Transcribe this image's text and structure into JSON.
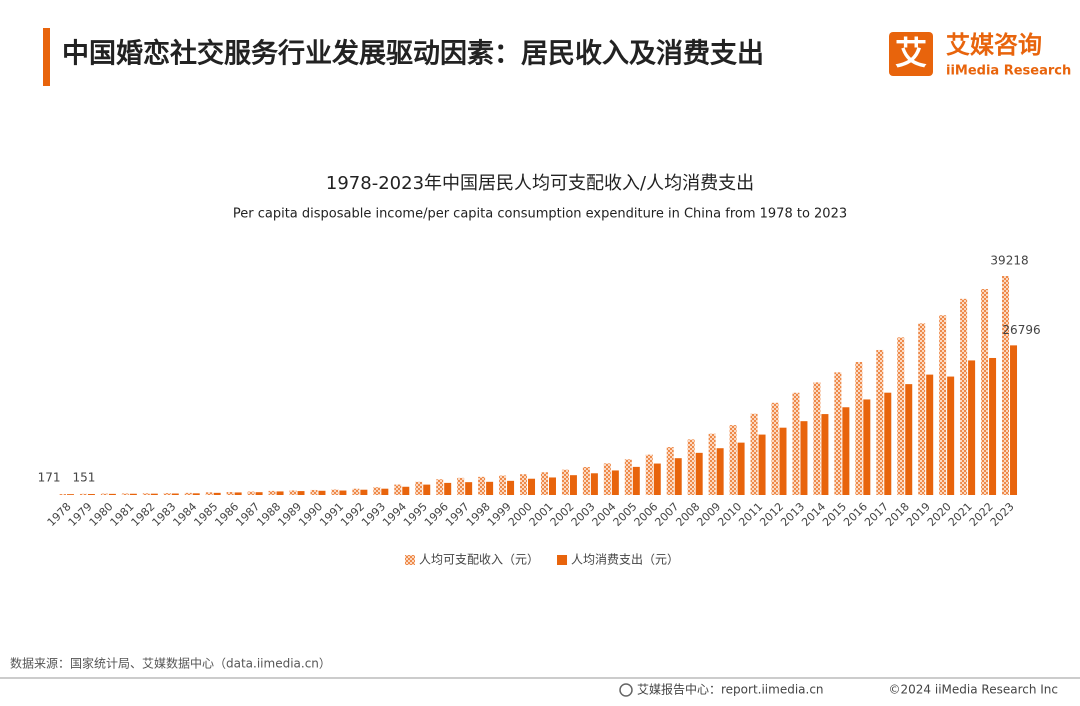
{
  "header": {
    "title": "中国婚恋社交服务行业发展驱动因素：居民收入及消费支出",
    "logo_mark": "艾",
    "logo_name": "艾媒咨询",
    "logo_sub": "iiMedia Research"
  },
  "chart_data": {
    "type": "bar",
    "title": "1978-2023年中国居民人均可支配收入/人均消费支出",
    "subtitle": "Per capita disposable income/per capita consumption expenditure in China from 1978 to 2023",
    "categories": [
      "1978",
      "1979",
      "1980",
      "1981",
      "1982",
      "1983",
      "1984",
      "1985",
      "1986",
      "1987",
      "1988",
      "1989",
      "1990",
      "1991",
      "1992",
      "1993",
      "1994",
      "1995",
      "1996",
      "1997",
      "1998",
      "1999",
      "2000",
      "2001",
      "2002",
      "2003",
      "2004",
      "2005",
      "2006",
      "2007",
      "2008",
      "2009",
      "2010",
      "2011",
      "2012",
      "2013",
      "2014",
      "2015",
      "2016",
      "2017",
      "2018",
      "2019",
      "2020",
      "2021",
      "2022",
      "2023"
    ],
    "series": [
      {
        "name": "人均可支配收入（元）",
        "color": "#ee8a4a",
        "pattern": "checker",
        "values": [
          171,
          208,
          247,
          270,
          301,
          338,
          383,
          478,
          540,
          616,
          737,
          818,
          904,
          976,
          1125,
          1385,
          1870,
          2363,
          2814,
          3070,
          3250,
          3478,
          3721,
          4070,
          4532,
          5007,
          5661,
          6385,
          7229,
          8584,
          9956,
          10977,
          12520,
          14551,
          16510,
          18311,
          20167,
          21966,
          23821,
          25974,
          28228,
          30733,
          32189,
          35128,
          36883,
          39218
        ]
      },
      {
        "name": "人均消费支出（元）",
        "color": "#e8640c",
        "values": [
          151,
          173,
          204,
          225,
          240,
          267,
          300,
          386,
          457,
          502,
          641,
          699,
          756,
          801,
          947,
          1130,
          1476,
          1862,
          2168,
          2301,
          2362,
          2535,
          2914,
          3139,
          3549,
          3889,
          4395,
          5035,
          5634,
          6592,
          7548,
          8377,
          9378,
          10820,
          12054,
          13220,
          14491,
          15712,
          17111,
          18322,
          19853,
          21559,
          21210,
          24100,
          24538,
          26796
        ]
      }
    ],
    "legend": "bottom"
  },
  "footer": {
    "source": "数据来源：国家统计局、艾媒数据中心（data.iimedia.cn）",
    "site": "艾媒报告中心：report.iimedia.cn",
    "copyright": "©2024  iiMedia Research Inc"
  }
}
